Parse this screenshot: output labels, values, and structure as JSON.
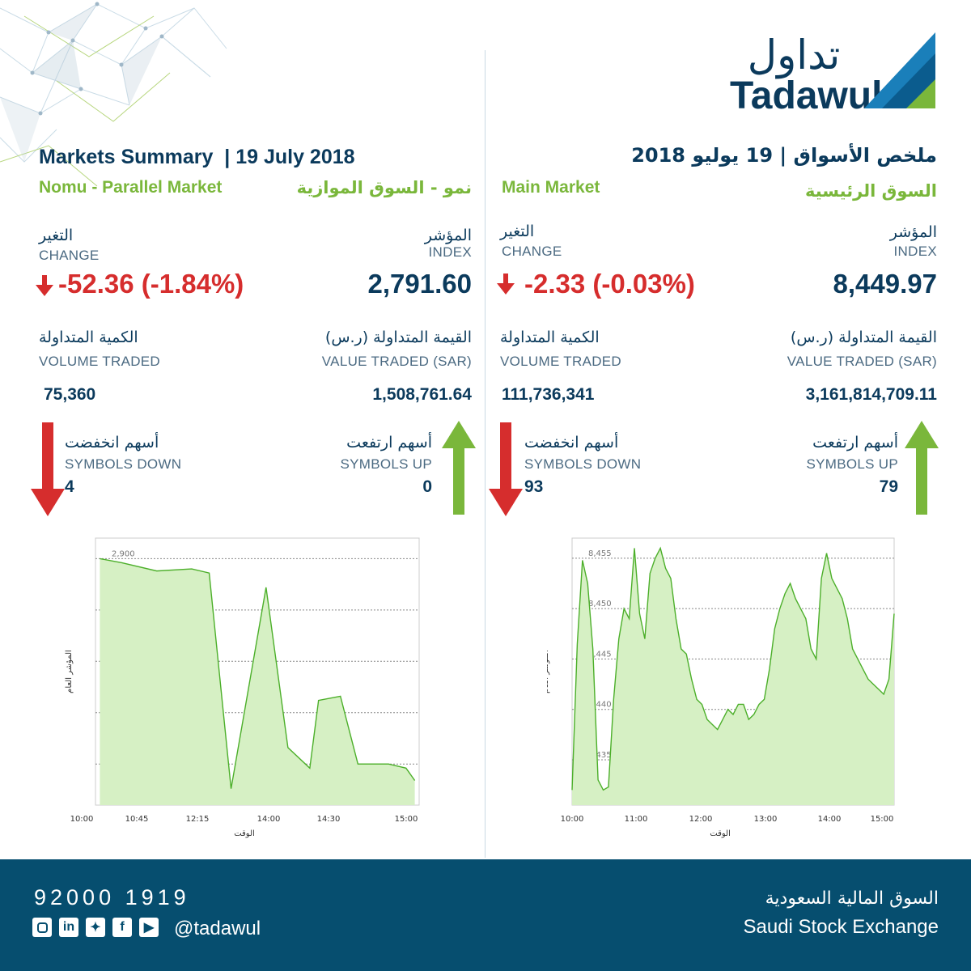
{
  "brand": {
    "arabic": "تداول",
    "latin": "Tadawul"
  },
  "right": {
    "title": "ملخص الأسواق | 19 يوليو 2018",
    "subtitle_en": "Main Market",
    "subtitle_ar": "السوق الرئيسية",
    "index_ar": "المؤشر",
    "index_en": "INDEX",
    "index_value": "8,449.97",
    "change_ar": "التغير",
    "change_en": "CHANGE",
    "change_value": "-2.33 (-0.03%)",
    "value_ar": "القيمة المتداولة (ر.س)",
    "value_en": "VALUE TRADED (SAR)",
    "value_value": "3,161,814,709.11",
    "volume_ar": "الكمية المتداولة",
    "volume_en": "VOLUME TRADED",
    "volume_value": "111,736,341",
    "up_ar": "أسهم ارتفعت",
    "up_en": "SYMBOLS UP",
    "up_value": "79",
    "down_ar": "أسهم انخفضت",
    "down_en": "SYMBOLS DOWN",
    "down_value": "93"
  },
  "left": {
    "title": "Markets Summary  | 19 July 2018",
    "subtitle_en": "Nomu - Parallel Market",
    "subtitle_ar": "نمو - السوق الموازية",
    "index_ar": "المؤشر",
    "index_en": "INDEX",
    "index_value": "2,791.60",
    "change_ar": "التغير",
    "change_en": "CHANGE",
    "change_value": "-52.36 (-1.84%)",
    "value_ar": "القيمة المتداولة (ر.س)",
    "value_en": "VALUE TRADED (SAR)",
    "value_value": "1,508,761.64",
    "volume_ar": "الكمية المتداولة",
    "volume_en": "VOLUME TRADED",
    "volume_value": "75,360",
    "up_ar": "أسهم ارتفعت",
    "up_en": "SYMBOLS UP",
    "up_value": "0",
    "down_ar": "أسهم انخفضت",
    "down_en": "SYMBOLS DOWN",
    "down_value": "4"
  },
  "footer": {
    "phone": "92000 1919",
    "handle": "@tadawul",
    "exchange_ar": "السوق المالية السعودية",
    "exchange_en": "Saudi Stock Exchange",
    "social_icons": [
      "instagram-icon",
      "linkedin-icon",
      "twitter-icon",
      "facebook-icon",
      "youtube-icon"
    ]
  },
  "colors": {
    "navy": "#0b3a5c",
    "green": "#7ab73b",
    "red": "#d62d2d",
    "footer": "#064e6f",
    "area_fill": "#d6f0c4",
    "area_line": "#4caf2a"
  },
  "chart_data": [
    {
      "type": "area",
      "market": "Nomu - Parallel Market",
      "xlabel": "الوقت",
      "ylabel": "المؤشر العام",
      "x_ticks": [
        "10:00",
        "10:45",
        "12:15",
        "14:00",
        "14:30",
        "15:00"
      ],
      "y_ticks": [
        "2,900",
        "2,875",
        "2,850",
        "2,825",
        "2,800"
      ],
      "ylim": [
        2780,
        2910
      ],
      "x": [
        "10:05",
        "10:30",
        "11:10",
        "11:50",
        "12:10",
        "12:35",
        "13:15",
        "13:40",
        "14:05",
        "14:15",
        "14:40",
        "15:00",
        "15:35",
        "15:55",
        "16:05"
      ],
      "values": [
        2900,
        2898,
        2894,
        2895,
        2893,
        2788,
        2886,
        2808,
        2798,
        2831,
        2833,
        2800,
        2800,
        2798,
        2792
      ],
      "grid": true
    },
    {
      "type": "area",
      "market": "Main Market",
      "xlabel": "الوقت",
      "ylabel": "المؤشر العام",
      "x_ticks": [
        "10:00",
        "11:00",
        "12:00",
        "13:00",
        "14:00",
        "15:00"
      ],
      "y_ticks": [
        "8,455",
        "8,450",
        "8,445",
        "8,440",
        "8,435"
      ],
      "ylim": [
        8430.5,
        8457
      ],
      "x": [
        "10:00",
        "10:05",
        "10:10",
        "10:15",
        "10:20",
        "10:25",
        "10:30",
        "10:35",
        "10:40",
        "10:45",
        "10:50",
        "10:55",
        "11:00",
        "11:05",
        "11:10",
        "11:15",
        "11:20",
        "11:25",
        "11:30",
        "11:35",
        "11:40",
        "11:45",
        "11:50",
        "11:55",
        "12:00",
        "12:05",
        "12:10",
        "12:15",
        "12:20",
        "12:25",
        "12:30",
        "12:35",
        "12:40",
        "12:45",
        "12:50",
        "12:55",
        "13:00",
        "13:05",
        "13:10",
        "13:15",
        "13:20",
        "13:25",
        "13:30",
        "13:35",
        "13:40",
        "13:45",
        "13:50",
        "13:55",
        "14:00",
        "14:05",
        "14:10",
        "14:15",
        "14:20",
        "14:25",
        "14:30",
        "14:35",
        "14:40",
        "14:45",
        "14:50",
        "14:55",
        "15:00",
        "15:05",
        "15:10"
      ],
      "values": [
        8432.0,
        8446.5,
        8454.8,
        8452.5,
        8446.0,
        8433.0,
        8432.0,
        8432.3,
        8441.0,
        8447.0,
        8450.0,
        8449.0,
        8456.0,
        8449.5,
        8447.0,
        8453.5,
        8455.0,
        8456.0,
        8454.0,
        8453.0,
        8449.0,
        8446.0,
        8445.5,
        8443.0,
        8441.0,
        8440.5,
        8439.0,
        8438.5,
        8438.0,
        8439.0,
        8440.0,
        8439.5,
        8440.5,
        8440.5,
        8439.0,
        8439.5,
        8440.5,
        8441.0,
        8444.0,
        8448.0,
        8450.0,
        8451.5,
        8452.5,
        8451.0,
        8450.0,
        8449.0,
        8446.0,
        8445.0,
        8453.0,
        8455.5,
        8453.0,
        8452.0,
        8451.0,
        8449.0,
        8446.0,
        8445.0,
        8444.0,
        8443.0,
        8442.5,
        8442.0,
        8441.5,
        8443.0,
        8449.5
      ],
      "grid": true
    }
  ]
}
